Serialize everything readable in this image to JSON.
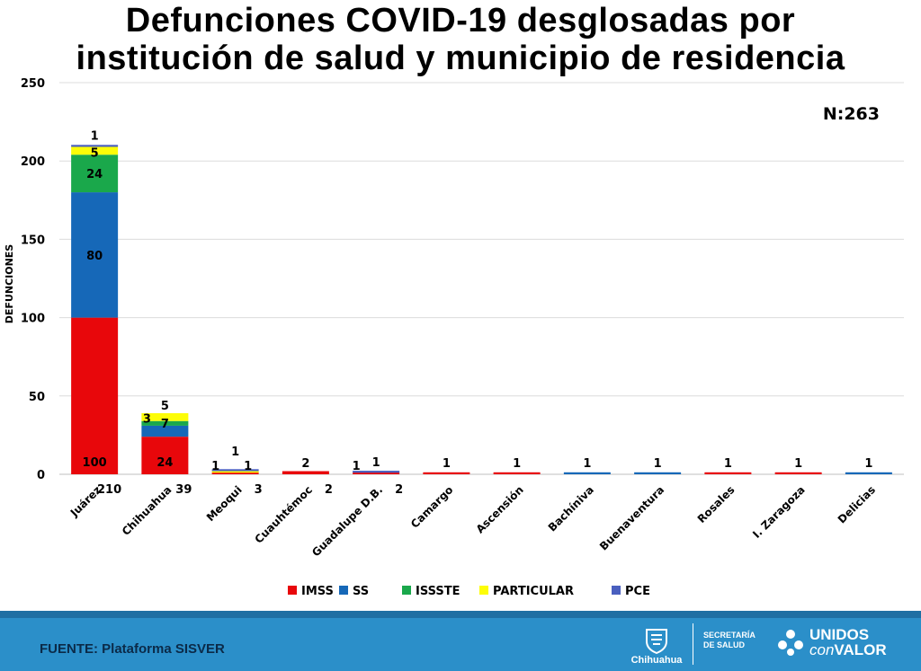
{
  "title_line1": "Defunciones COVID-19 desglosadas por",
  "title_line2": "institución de salud y municipio de residencia",
  "footer": {
    "source": "FUENTE: Plataforma SISVER",
    "state_logo_text": "Chihuahua",
    "secretaria_line1": "SECRETARÍA",
    "secretaria_line2": "DE SALUD",
    "unidos_line1": "UNIDOS",
    "unidos_con": "con",
    "unidos_valor": "VALOR"
  },
  "chart_data": {
    "type": "bar",
    "stacked": true,
    "title": "Defunciones COVID-19 desglosadas por institución de salud y municipio de residencia",
    "ylabel": "DEFUNCIONES",
    "xlabel": "",
    "ylim": [
      0,
      250
    ],
    "yticks": [
      0,
      50,
      100,
      150,
      200,
      250
    ],
    "grid": true,
    "annotation": "N:263",
    "legend_position": "bottom",
    "categories": [
      "Juárez",
      "Chihuahua",
      "Meoqui",
      "Cuauhtémoc",
      "Guadalupe D.B.",
      "Camargo",
      "Ascensión",
      "Bachíniva",
      "Buenaventura",
      "Rosales",
      "I. Zaragoza",
      "Delicias"
    ],
    "totals": [
      210,
      39,
      3,
      2,
      2,
      null,
      null,
      null,
      null,
      null,
      null,
      null
    ],
    "series": [
      {
        "name": "IMSS",
        "color": "#e8070b",
        "values": [
          100,
          24,
          1,
          2,
          1,
          1,
          1,
          0,
          0,
          1,
          1,
          0
        ],
        "labels": [
          "100",
          "24",
          "1",
          "2",
          "1",
          "1",
          "1",
          "",
          "",
          "1",
          "1",
          ""
        ]
      },
      {
        "name": "SS",
        "color": "#1668b8",
        "values": [
          80,
          7,
          0,
          0,
          0,
          0,
          0,
          1,
          1,
          0,
          0,
          1
        ],
        "labels": [
          "80",
          "7",
          "",
          "",
          "",
          "",
          "",
          "1",
          "1",
          "",
          "",
          "1"
        ]
      },
      {
        "name": "ISSSTE",
        "color": "#1aa84b",
        "values": [
          24,
          3,
          0,
          0,
          0,
          0,
          0,
          0,
          0,
          0,
          0,
          0
        ],
        "labels": [
          "24",
          "3",
          "",
          "",
          "",
          "",
          "",
          "",
          "",
          "",
          "",
          ""
        ]
      },
      {
        "name": "PARTICULAR",
        "color": "#fdfd07",
        "values": [
          5,
          5,
          1,
          0,
          0,
          0,
          0,
          0,
          0,
          0,
          0,
          0
        ],
        "labels": [
          "5",
          "5",
          "1",
          "",
          "",
          "",
          "",
          "",
          "",
          "",
          "",
          ""
        ]
      },
      {
        "name": "PCE",
        "color": "#4a5fbf",
        "values": [
          1,
          0,
          1,
          0,
          1,
          0,
          0,
          0,
          0,
          0,
          0,
          0
        ],
        "labels": [
          "1",
          "",
          "1",
          "",
          "1",
          "",
          "",
          "",
          "",
          "",
          "",
          ""
        ]
      }
    ]
  }
}
